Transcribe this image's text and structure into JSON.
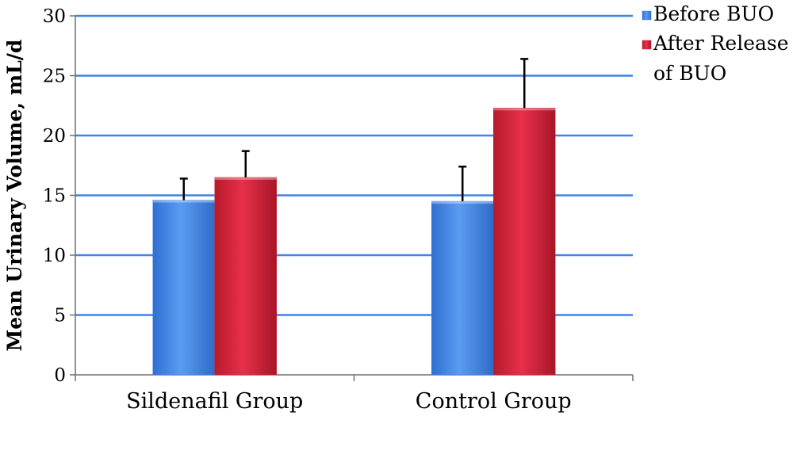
{
  "chart_data": {
    "type": "bar",
    "title": "",
    "xlabel": "",
    "ylabel": "Mean Urinary Volume, mL/d",
    "ylim": [
      0,
      30
    ],
    "yticks": [
      0,
      5,
      10,
      15,
      20,
      25,
      30
    ],
    "grid": true,
    "legend_position": "top-right",
    "categories": [
      "Sildenafil Group",
      "Control Group"
    ],
    "series": [
      {
        "name": "Before BUO",
        "legend_lines": [
          "Before BUO"
        ],
        "color": "#3f84e6",
        "values": [
          14.6,
          14.5
        ],
        "errors": [
          1.8,
          2.9
        ]
      },
      {
        "name": "After Release of BUO",
        "legend_lines": [
          "After Release",
          "of BUO"
        ],
        "color": "#d42438",
        "values": [
          16.5,
          22.3
        ],
        "errors": [
          2.2,
          4.1
        ]
      }
    ],
    "gridline_color": "#3f84e6"
  }
}
